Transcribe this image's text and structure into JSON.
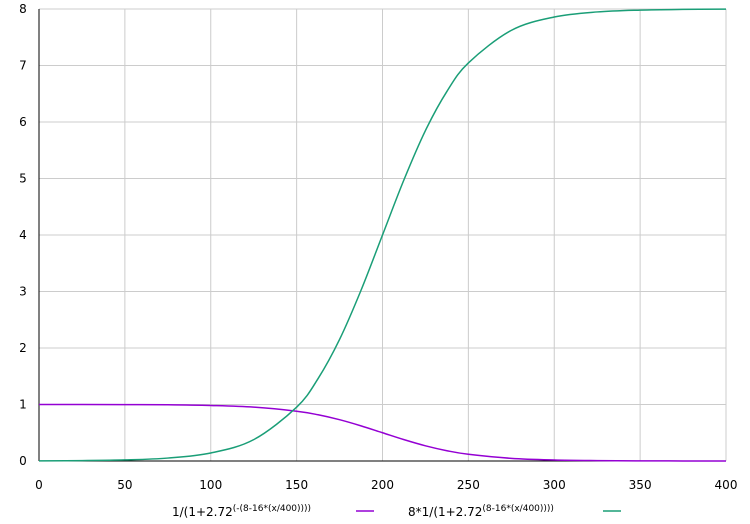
{
  "chart_data": {
    "type": "line",
    "title": "",
    "xlabel": "",
    "ylabel": "",
    "xlim": [
      0,
      400
    ],
    "ylim": [
      0,
      8
    ],
    "x_ticks": [
      0,
      50,
      100,
      150,
      200,
      250,
      300,
      350,
      400
    ],
    "y_ticks": [
      0,
      1,
      2,
      3,
      4,
      5,
      6,
      7,
      8
    ],
    "x_tick_labels": [
      "0",
      "50",
      "100",
      "150",
      "200",
      "250",
      "300",
      "350",
      "400"
    ],
    "y_tick_labels": [
      "0",
      "1",
      "2",
      "3",
      "4",
      "5",
      "6",
      "7",
      "8"
    ],
    "grid": true,
    "legend_position": "bottom",
    "series": [
      {
        "name_base": "1/(1+2.72",
        "name_sup": "(-(8-16*(x/400))))",
        "color": "#9400d3",
        "x": [
          0,
          25,
          50,
          75,
          100,
          125,
          150,
          162.5,
          175,
          187.5,
          200,
          212.5,
          225,
          237.5,
          250,
          275,
          300,
          325,
          350,
          375,
          400
        ],
        "y": [
          1.0,
          1.0,
          0.998,
          0.995,
          0.982,
          0.953,
          0.881,
          0.818,
          0.731,
          0.622,
          0.5,
          0.378,
          0.269,
          0.182,
          0.119,
          0.047,
          0.018,
          0.007,
          0.002,
          0.001,
          0.0
        ]
      },
      {
        "name_base": "8*1/(1+2.72",
        "name_sup": "(8-16*(x/400))))",
        "color": "#1a9e77",
        "x": [
          0,
          25,
          50,
          75,
          100,
          125,
          150,
          162.5,
          175,
          187.5,
          200,
          212.5,
          225,
          237.5,
          250,
          275,
          300,
          325,
          350,
          375,
          400
        ],
        "y": [
          0.003,
          0.007,
          0.019,
          0.052,
          0.142,
          0.378,
          0.953,
          1.459,
          2.151,
          3.022,
          4.0,
          4.978,
          5.849,
          6.541,
          7.046,
          7.622,
          7.858,
          7.948,
          7.981,
          7.993,
          7.997
        ]
      }
    ]
  }
}
